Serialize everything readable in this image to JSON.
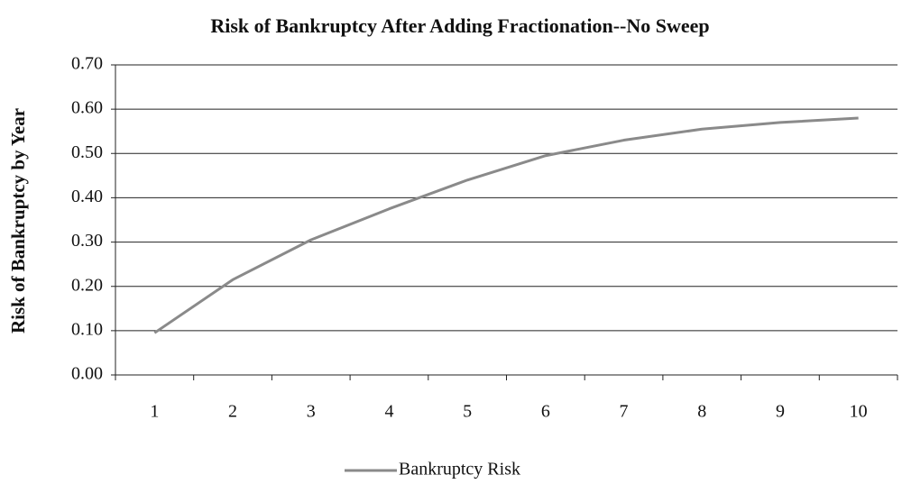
{
  "chart_data": {
    "type": "line",
    "title": "Risk of Bankruptcy After Adding Fractionation--No Sweep",
    "y_label": "Risk of Bankruptcy by Year",
    "categories": [
      "1",
      "2",
      "3",
      "4",
      "5",
      "6",
      "7",
      "8",
      "9",
      "10"
    ],
    "series": [
      {
        "name": "Bankruptcy Risk",
        "color": "#8a8a8a",
        "values": [
          0.095,
          0.215,
          0.305,
          0.375,
          0.44,
          0.495,
          0.53,
          0.555,
          0.57,
          0.58
        ]
      }
    ],
    "ylim": [
      0,
      0.7
    ],
    "yticks": [
      {
        "value": 0,
        "label": "0.00"
      },
      {
        "value": 0.1,
        "label": "0.10"
      },
      {
        "value": 0.2,
        "label": "0.20"
      },
      {
        "value": 0.3,
        "label": "0.30"
      },
      {
        "value": 0.4,
        "label": "0.40"
      },
      {
        "value": 0.5,
        "label": "0.50"
      },
      {
        "value": 0.6,
        "label": "0.60"
      },
      {
        "value": 0.7,
        "label": "0.70"
      }
    ],
    "grid": true,
    "legend": "bottom"
  }
}
